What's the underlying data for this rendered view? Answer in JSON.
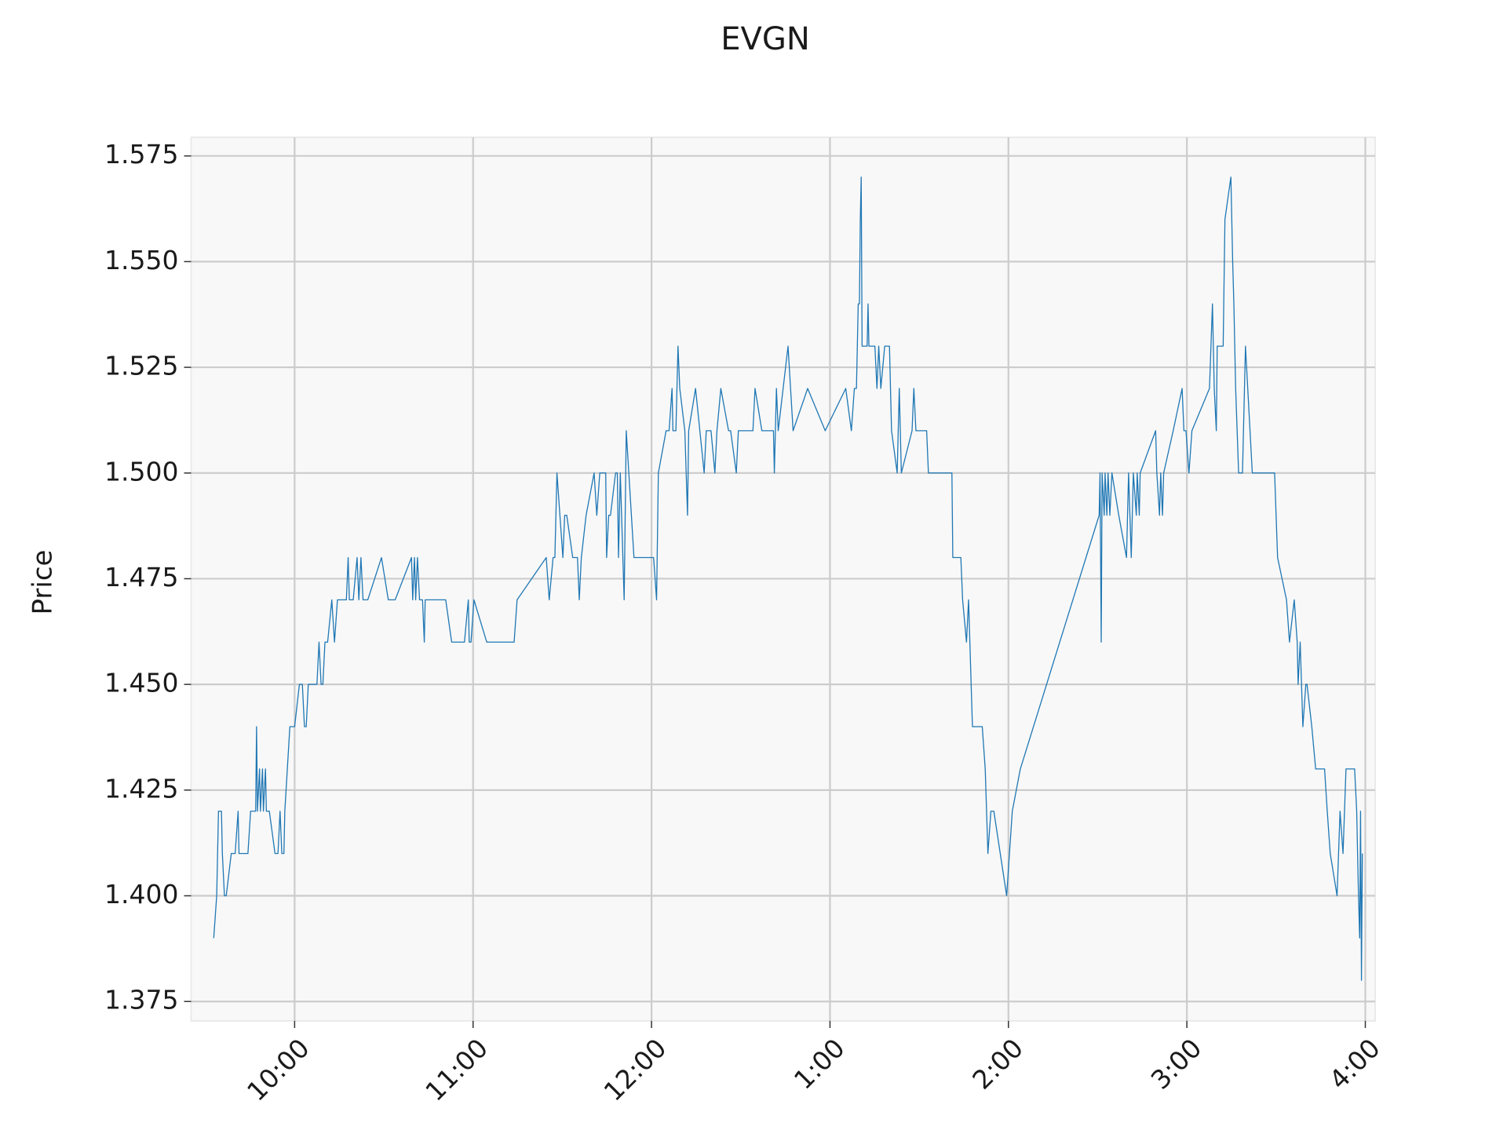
{
  "chart_data": {
    "type": "line",
    "title": "EVGN",
    "ylabel": "Price",
    "color": "#1f77b4",
    "grid": true,
    "xlim": [
      565.2,
      963.3
    ],
    "ylim": [
      1.3704,
      1.5794
    ],
    "xticks": [
      {
        "value": 600,
        "label": "10:00"
      },
      {
        "value": 660,
        "label": "11:00"
      },
      {
        "value": 720,
        "label": "12:00"
      },
      {
        "value": 780,
        "label": "1:00"
      },
      {
        "value": 840,
        "label": "2:00"
      },
      {
        "value": 900,
        "label": "3:00"
      },
      {
        "value": 960,
        "label": "4:00"
      }
    ],
    "yticks": [
      {
        "value": 1.375,
        "label": "1.375"
      },
      {
        "value": 1.4,
        "label": "1.400"
      },
      {
        "value": 1.425,
        "label": "1.425"
      },
      {
        "value": 1.45,
        "label": "1.450"
      },
      {
        "value": 1.475,
        "label": "1.475"
      },
      {
        "value": 1.5,
        "label": "1.500"
      },
      {
        "value": 1.525,
        "label": "1.525"
      },
      {
        "value": 1.55,
        "label": "1.550"
      },
      {
        "value": 1.575,
        "label": "1.575"
      }
    ],
    "x": [
      572.8,
      573.8,
      574.4,
      575.4,
      575.7,
      576.4,
      577.0,
      578.7,
      580.0,
      581.0,
      581.3,
      582.9,
      584.3,
      585.2,
      586.9,
      587.2,
      587.5,
      588.2,
      588.5,
      589.2,
      589.5,
      590.2,
      590.5,
      591.5,
      593.4,
      594.4,
      595.1,
      595.7,
      596.4,
      596.7,
      598.4,
      599.3,
      600.0,
      601.6,
      602.6,
      603.3,
      603.9,
      604.6,
      607.5,
      608.2,
      608.9,
      609.5,
      610.2,
      611.1,
      612.5,
      613.4,
      614.4,
      617.4,
      618.0,
      618.4,
      619.7,
      621.0,
      621.6,
      622.3,
      623.0,
      624.6,
      629.2,
      631.5,
      633.8,
      639.3,
      639.7,
      640.3,
      640.7,
      641.3,
      642.0,
      643.0,
      643.6,
      643.9,
      650.8,
      652.8,
      657.1,
      658.4,
      658.7,
      659.3,
      660.3,
      664.6,
      673.8,
      674.8,
      684.6,
      685.6,
      686.9,
      687.5,
      688.2,
      689.2,
      690.2,
      690.8,
      691.5,
      693.5,
      695.1,
      695.7,
      696.4,
      698.0,
      700.7,
      701.6,
      702.6,
      704.6,
      704.9,
      705.6,
      706.2,
      707.9,
      708.5,
      708.9,
      709.5,
      710.8,
      711.5,
      714.1,
      720.7,
      721.7,
      722.3,
      724.9,
      725.9,
      726.9,
      727.2,
      728.2,
      728.9,
      729.5,
      731.2,
      732.1,
      732.5,
      734.8,
      737.7,
      738.4,
      740.0,
      741.3,
      742.0,
      743.3,
      745.9,
      746.6,
      748.5,
      749.2,
      754.1,
      754.8,
      757.1,
      761.0,
      761.3,
      762.0,
      762.6,
      765.9,
      767.6,
      772.5,
      778.4,
      785.3,
      787.2,
      788.2,
      788.9,
      789.5,
      789.9,
      790.2,
      790.5,
      790.8,
      792.5,
      792.8,
      793.1,
      795.1,
      795.8,
      796.4,
      797.1,
      798.4,
      800.0,
      800.7,
      802.6,
      803.3,
      804.0,
      807.6,
      808.2,
      808.9,
      812.5,
      813.1,
      821.0,
      821.3,
      824.0,
      824.6,
      825.9,
      826.6,
      827.9,
      831.2,
      832.2,
      833.1,
      834.1,
      835.1,
      839.4,
      841.3,
      844.0,
      870.5,
      870.8,
      871.2,
      871.5,
      872.2,
      872.5,
      873.1,
      873.5,
      874.1,
      874.8,
      877.1,
      879.7,
      880.4,
      881.3,
      882.0,
      883.0,
      883.3,
      884.0,
      884.3,
      889.5,
      889.9,
      890.8,
      891.2,
      891.8,
      892.2,
      895.4,
      898.4,
      899.0,
      899.7,
      900.7,
      901.7,
      907.6,
      908.6,
      909.2,
      909.9,
      910.2,
      912.2,
      912.8,
      914.8,
      915.4,
      915.8,
      916.4,
      917.4,
      918.7,
      919.7,
      922.0,
      929.5,
      930.5,
      933.5,
      934.5,
      936.1,
      937.1,
      937.4,
      938.1,
      939.0,
      940.0,
      940.4,
      942.0,
      943.3,
      945.3,
      946.3,
      947.2,
      948.2,
      950.5,
      951.5,
      952.5,
      953.5,
      956.4,
      957.1,
      957.4,
      957.7,
      958.1,
      958.4,
      958.7,
      959.0
    ],
    "values": [
      1.39,
      1.4,
      1.42,
      1.42,
      1.41,
      1.4,
      1.4,
      1.41,
      1.41,
      1.42,
      1.41,
      1.41,
      1.41,
      1.42,
      1.42,
      1.44,
      1.42,
      1.43,
      1.42,
      1.43,
      1.42,
      1.43,
      1.42,
      1.42,
      1.41,
      1.41,
      1.42,
      1.41,
      1.41,
      1.42,
      1.44,
      1.44,
      1.44,
      1.45,
      1.45,
      1.44,
      1.44,
      1.45,
      1.45,
      1.46,
      1.45,
      1.45,
      1.46,
      1.46,
      1.47,
      1.46,
      1.47,
      1.47,
      1.48,
      1.47,
      1.47,
      1.48,
      1.47,
      1.48,
      1.47,
      1.47,
      1.48,
      1.47,
      1.47,
      1.48,
      1.47,
      1.48,
      1.47,
      1.48,
      1.47,
      1.47,
      1.46,
      1.47,
      1.47,
      1.46,
      1.46,
      1.47,
      1.46,
      1.46,
      1.47,
      1.46,
      1.46,
      1.47,
      1.48,
      1.47,
      1.48,
      1.48,
      1.5,
      1.49,
      1.48,
      1.49,
      1.49,
      1.48,
      1.48,
      1.47,
      1.48,
      1.49,
      1.5,
      1.49,
      1.5,
      1.5,
      1.48,
      1.49,
      1.49,
      1.5,
      1.5,
      1.48,
      1.5,
      1.47,
      1.51,
      1.48,
      1.48,
      1.47,
      1.5,
      1.51,
      1.51,
      1.52,
      1.51,
      1.51,
      1.53,
      1.52,
      1.51,
      1.49,
      1.51,
      1.52,
      1.5,
      1.51,
      1.51,
      1.5,
      1.51,
      1.52,
      1.51,
      1.51,
      1.5,
      1.51,
      1.51,
      1.52,
      1.51,
      1.51,
      1.5,
      1.52,
      1.51,
      1.53,
      1.51,
      1.52,
      1.51,
      1.52,
      1.51,
      1.52,
      1.52,
      1.54,
      1.54,
      1.56,
      1.57,
      1.53,
      1.53,
      1.54,
      1.53,
      1.53,
      1.52,
      1.53,
      1.52,
      1.53,
      1.53,
      1.51,
      1.5,
      1.52,
      1.5,
      1.51,
      1.52,
      1.51,
      1.51,
      1.5,
      1.5,
      1.48,
      1.48,
      1.47,
      1.46,
      1.47,
      1.44,
      1.44,
      1.43,
      1.41,
      1.42,
      1.42,
      1.4,
      1.42,
      1.43,
      1.49,
      1.5,
      1.46,
      1.5,
      1.49,
      1.5,
      1.49,
      1.5,
      1.49,
      1.5,
      1.49,
      1.48,
      1.5,
      1.48,
      1.5,
      1.49,
      1.5,
      1.49,
      1.5,
      1.51,
      1.5,
      1.49,
      1.5,
      1.49,
      1.5,
      1.51,
      1.52,
      1.51,
      1.51,
      1.5,
      1.51,
      1.52,
      1.54,
      1.52,
      1.51,
      1.53,
      1.53,
      1.56,
      1.57,
      1.55,
      1.54,
      1.52,
      1.5,
      1.5,
      1.53,
      1.5,
      1.5,
      1.48,
      1.47,
      1.46,
      1.47,
      1.46,
      1.45,
      1.46,
      1.44,
      1.45,
      1.45,
      1.44,
      1.43,
      1.43,
      1.43,
      1.42,
      1.41,
      1.4,
      1.42,
      1.41,
      1.43,
      1.43,
      1.42,
      1.41,
      1.4,
      1.39,
      1.42,
      1.38,
      1.41
    ]
  }
}
